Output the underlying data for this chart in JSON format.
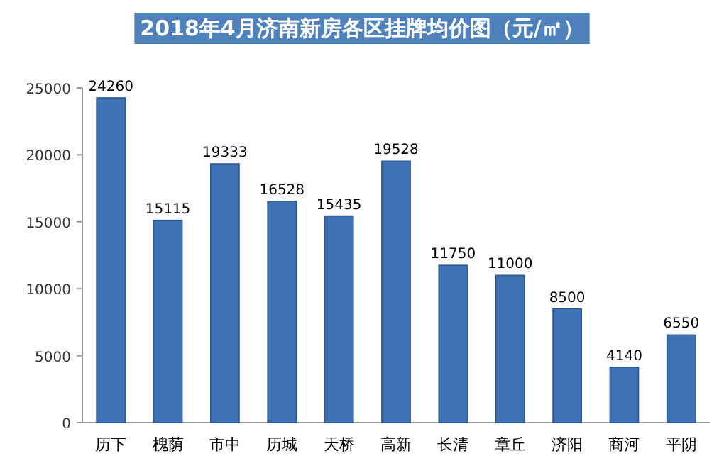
{
  "chart_data": {
    "type": "bar",
    "title": "2018年4月济南新房各区挂牌均价图（元/㎡）",
    "categories": [
      "历下",
      "槐荫",
      "市中",
      "历城",
      "天桥",
      "高新",
      "长清",
      "章丘",
      "济阳",
      "商河",
      "平阴"
    ],
    "values": [
      24260,
      15115,
      19333,
      16528,
      15435,
      19528,
      11750,
      11000,
      8500,
      4140,
      6550
    ],
    "color": "#3f72b5",
    "ylim": [
      0,
      25000
    ],
    "yticks": [
      0,
      5000,
      10000,
      15000,
      20000,
      25000
    ],
    "data_labels": true,
    "grid": false
  }
}
